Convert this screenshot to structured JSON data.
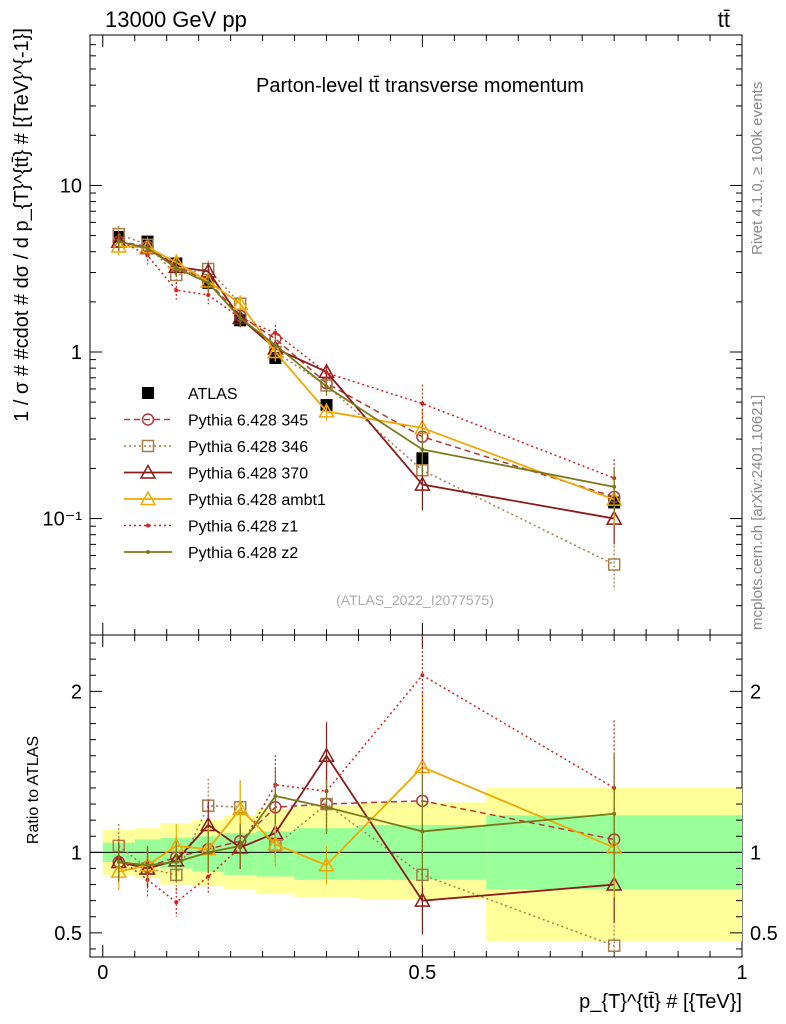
{
  "header": {
    "left": "13000 GeV pp",
    "right": "tt̄"
  },
  "side_text": {
    "rivet": "Rivet 4.1.0, ≥ 100k events",
    "mcplots": "mcplots.cern.ch [arXiv:2401.10621]"
  },
  "colors": {
    "ATLAS": "#000000",
    "p345": "#b03a3a",
    "p346": "#a87c4a",
    "p370": "#8b1a1a",
    "ambt1": "#f0a800",
    "z1": "#d42020",
    "z2": "#7a7a1a",
    "band_inner": "#99ff99",
    "band_outer": "#ffff99"
  },
  "chart_data": [
    {
      "type": "line",
      "title": "Parton-level tt̄ transverse momentum",
      "ylabel": "1 / σ # #cdot # dσ / d p_{T}^{tt̄} # [{TeV}^{-1}]",
      "xlabel": "",
      "yscale": "log",
      "ylim": [
        0.02,
        80
      ],
      "xlim": [
        -0.02,
        1.0
      ],
      "yticks": [
        0.1,
        1,
        10
      ],
      "ytick_labels": [
        "10⁻¹",
        "1",
        "10"
      ],
      "analysis_label": "(ATLAS_2022_I2077575)",
      "legend_position": "middle-left",
      "x": [
        0.025,
        0.07,
        0.115,
        0.165,
        0.215,
        0.27,
        0.35,
        0.5,
        0.8
      ],
      "series": [
        {
          "name": "ATLAS",
          "values": [
            4.9,
            4.6,
            3.4,
            2.6,
            1.55,
            0.92,
            0.48,
            0.23,
            0.125
          ]
        },
        {
          "name": "Pythia 6.428 345",
          "values": [
            4.6,
            4.3,
            3.3,
            2.65,
            1.65,
            1.2,
            0.65,
            0.31,
            0.135
          ]
        },
        {
          "name": "Pythia 6.428 346",
          "values": [
            5.1,
            4.4,
            2.9,
            3.15,
            1.95,
            1.0,
            0.63,
            0.195,
            0.053
          ]
        },
        {
          "name": "Pythia 6.428 370",
          "values": [
            4.6,
            4.2,
            3.25,
            3.05,
            1.6,
            1.05,
            0.76,
            0.16,
            0.1
          ]
        },
        {
          "name": "Pythia 6.428 ambt1",
          "values": [
            4.3,
            4.25,
            3.45,
            2.65,
            1.95,
            1.0,
            0.44,
            0.35,
            0.13
          ]
        },
        {
          "name": "Pythia 6.428 z1",
          "values": [
            4.7,
            3.8,
            2.35,
            2.2,
            1.6,
            1.3,
            0.75,
            0.49,
            0.175
          ]
        },
        {
          "name": "Pythia 6.428 z2",
          "values": [
            4.6,
            4.2,
            3.2,
            2.6,
            1.6,
            1.1,
            0.62,
            0.26,
            0.155
          ]
        }
      ]
    },
    {
      "type": "line",
      "title": "",
      "ylabel": "Ratio to ATLAS",
      "xlabel": "p_{T}^{tt̄} # [{TeV}]",
      "yscale": "linear",
      "ylim": [
        0.35,
        2.35
      ],
      "xlim": [
        -0.02,
        1.0
      ],
      "yticks": [
        0.5,
        1,
        2
      ],
      "ytick_labels": [
        "0.5",
        "1",
        "2"
      ],
      "xticks": [
        0,
        0.5,
        1
      ],
      "xtick_labels": [
        "0",
        "0.5",
        "1"
      ],
      "x": [
        0.025,
        0.07,
        0.115,
        0.165,
        0.215,
        0.27,
        0.35,
        0.5,
        0.8
      ],
      "bands": {
        "bin_edges": [
          0.0,
          0.05,
          0.09,
          0.14,
          0.19,
          0.24,
          0.3,
          0.4,
          0.6,
          1.0
        ],
        "inner_low": [
          0.94,
          0.92,
          0.9,
          0.88,
          0.86,
          0.85,
          0.83,
          0.83,
          0.77
        ],
        "inner_high": [
          1.06,
          1.08,
          1.09,
          1.1,
          1.12,
          1.13,
          1.15,
          1.17,
          1.23
        ],
        "outer_low": [
          0.86,
          0.84,
          0.8,
          0.79,
          0.77,
          0.74,
          0.72,
          0.71,
          0.45
        ],
        "outer_high": [
          1.14,
          1.15,
          1.18,
          1.2,
          1.23,
          1.27,
          1.29,
          1.31,
          1.4
        ]
      },
      "series": [
        {
          "name": "Pythia 6.428 345",
          "values": [
            0.94,
            0.91,
            0.97,
            1.02,
            1.07,
            1.28,
            1.3,
            1.32,
            1.08
          ]
        },
        {
          "name": "Pythia 6.428 346",
          "values": [
            1.04,
            0.9,
            0.86,
            1.29,
            1.28,
            1.04,
            1.3,
            0.86,
            0.42
          ]
        },
        {
          "name": "Pythia 6.428 370",
          "values": [
            0.94,
            0.9,
            0.95,
            1.17,
            1.03,
            1.12,
            1.6,
            0.7,
            0.8
          ]
        },
        {
          "name": "Pythia 6.428 ambt1",
          "values": [
            0.88,
            0.92,
            1.04,
            1.02,
            1.27,
            1.05,
            0.92,
            1.53,
            1.03
          ]
        },
        {
          "name": "Pythia 6.428 z1",
          "values": [
            0.96,
            0.83,
            0.69,
            0.85,
            1.03,
            1.42,
            1.38,
            2.1,
            1.4
          ]
        },
        {
          "name": "Pythia 6.428 z2",
          "values": [
            0.94,
            0.92,
            0.94,
            1.0,
            1.04,
            1.35,
            1.28,
            1.13,
            1.24
          ]
        }
      ]
    }
  ]
}
